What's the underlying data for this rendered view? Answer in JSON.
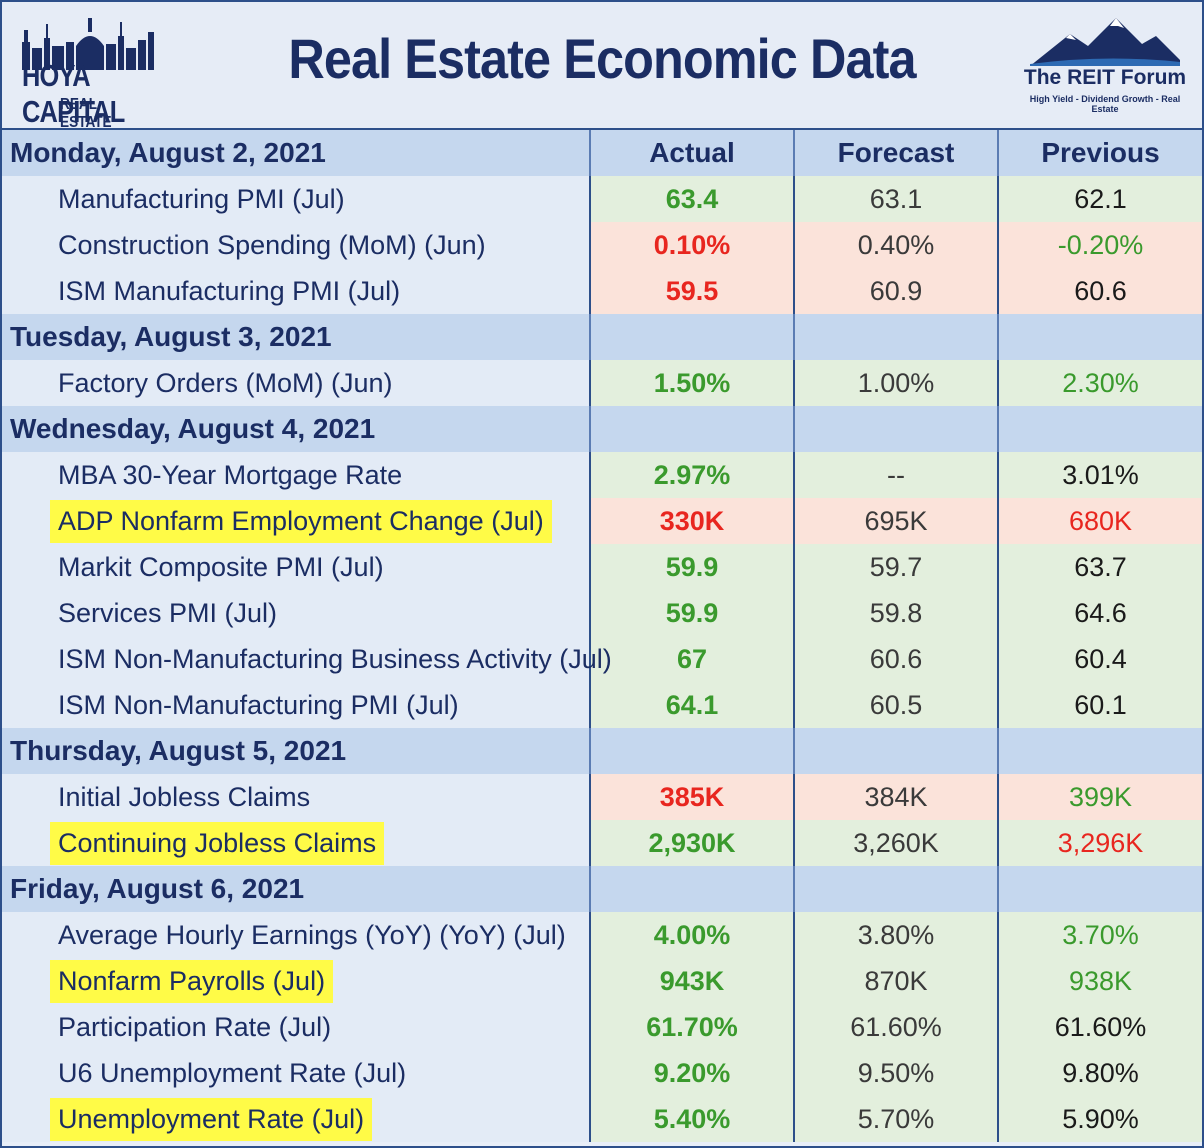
{
  "title": "Real Estate Economic Data",
  "logo_left": {
    "name": "HOYA CAPITAL",
    "sub": "REAL ESTATE"
  },
  "logo_right": {
    "name": "The REIT Forum",
    "tagline": "High Yield - Dividend Growth - Real Estate"
  },
  "columns": {
    "actual": "Actual",
    "forecast": "Forecast",
    "previous": "Previous"
  },
  "colors": {
    "navy": "#1b2d63",
    "green": "#3a9a2d",
    "red": "#e8261f",
    "highlight": "#fffb47",
    "day_band": "#c5d7ee"
  },
  "days": [
    {
      "label": "Monday, August 2, 2021",
      "rows": [
        {
          "name": "Manufacturing PMI (Jul)",
          "actual": "63.4",
          "forecast": "63.1",
          "previous": "62.1",
          "bg": "green",
          "actual_color": "g",
          "previous_color": "k",
          "highlight": false
        },
        {
          "name": "Construction Spending (MoM) (Jun)",
          "actual": "0.10%",
          "forecast": "0.40%",
          "previous": "-0.20%",
          "bg": "red",
          "actual_color": "r",
          "previous_color": "g",
          "highlight": false
        },
        {
          "name": "ISM Manufacturing PMI (Jul)",
          "actual": "59.5",
          "forecast": "60.9",
          "previous": "60.6",
          "bg": "red",
          "actual_color": "r",
          "previous_color": "k",
          "highlight": false
        }
      ]
    },
    {
      "label": "Tuesday, August 3, 2021",
      "rows": [
        {
          "name": "Factory Orders (MoM) (Jun)",
          "actual": "1.50%",
          "forecast": "1.00%",
          "previous": "2.30%",
          "bg": "green",
          "actual_color": "g",
          "previous_color": "g",
          "highlight": false
        }
      ]
    },
    {
      "label": "Wednesday, August 4, 2021",
      "rows": [
        {
          "name": "MBA 30-Year Mortgage Rate",
          "actual": "2.97%",
          "forecast": "--",
          "previous": "3.01%",
          "bg": "green",
          "actual_color": "g",
          "previous_color": "k",
          "highlight": false
        },
        {
          "name": "ADP Nonfarm Employment Change (Jul)",
          "actual": "330K",
          "forecast": "695K",
          "previous": "680K",
          "bg": "red",
          "actual_color": "r",
          "previous_color": "r",
          "highlight": true
        },
        {
          "name": "Markit Composite PMI (Jul)",
          "actual": "59.9",
          "forecast": "59.7",
          "previous": "63.7",
          "bg": "green",
          "actual_color": "g",
          "previous_color": "k",
          "highlight": false
        },
        {
          "name": "Services PMI (Jul)",
          "actual": "59.9",
          "forecast": "59.8",
          "previous": "64.6",
          "bg": "green",
          "actual_color": "g",
          "previous_color": "k",
          "highlight": false
        },
        {
          "name": "ISM Non-Manufacturing Business Activity (Jul)",
          "actual": "67",
          "forecast": "60.6",
          "previous": "60.4",
          "bg": "green",
          "actual_color": "g",
          "previous_color": "k",
          "highlight": false
        },
        {
          "name": "ISM Non-Manufacturing PMI (Jul)",
          "actual": "64.1",
          "forecast": "60.5",
          "previous": "60.1",
          "bg": "green",
          "actual_color": "g",
          "previous_color": "k",
          "highlight": false
        }
      ]
    },
    {
      "label": "Thursday, August 5, 2021",
      "rows": [
        {
          "name": "Initial Jobless Claims",
          "actual": "385K",
          "forecast": "384K",
          "previous": "399K",
          "bg": "red",
          "actual_color": "r",
          "previous_color": "g",
          "highlight": false
        },
        {
          "name": "Continuing Jobless Claims",
          "actual": "2,930K",
          "forecast": "3,260K",
          "previous": "3,296K",
          "bg": "green",
          "actual_color": "g",
          "previous_color": "r",
          "highlight": true
        }
      ]
    },
    {
      "label": "Friday, August 6, 2021",
      "rows": [
        {
          "name": "Average Hourly Earnings (YoY) (YoY) (Jul)",
          "actual": "4.00%",
          "forecast": "3.80%",
          "previous": "3.70%",
          "bg": "green",
          "actual_color": "g",
          "previous_color": "g",
          "highlight": false
        },
        {
          "name": "Nonfarm Payrolls (Jul)",
          "actual": "943K",
          "forecast": "870K",
          "previous": "938K",
          "bg": "green",
          "actual_color": "g",
          "previous_color": "g",
          "highlight": true
        },
        {
          "name": "Participation Rate (Jul)",
          "actual": "61.70%",
          "forecast": "61.60%",
          "previous": "61.60%",
          "bg": "green",
          "actual_color": "g",
          "previous_color": "k",
          "highlight": false
        },
        {
          "name": "U6 Unemployment Rate (Jul)",
          "actual": "9.20%",
          "forecast": "9.50%",
          "previous": "9.80%",
          "bg": "green",
          "actual_color": "g",
          "previous_color": "k",
          "highlight": false
        },
        {
          "name": "Unemployment Rate (Jul)",
          "actual": "5.40%",
          "forecast": "5.70%",
          "previous": "5.90%",
          "bg": "green",
          "actual_color": "g",
          "previous_color": "k",
          "highlight": true
        }
      ]
    }
  ]
}
